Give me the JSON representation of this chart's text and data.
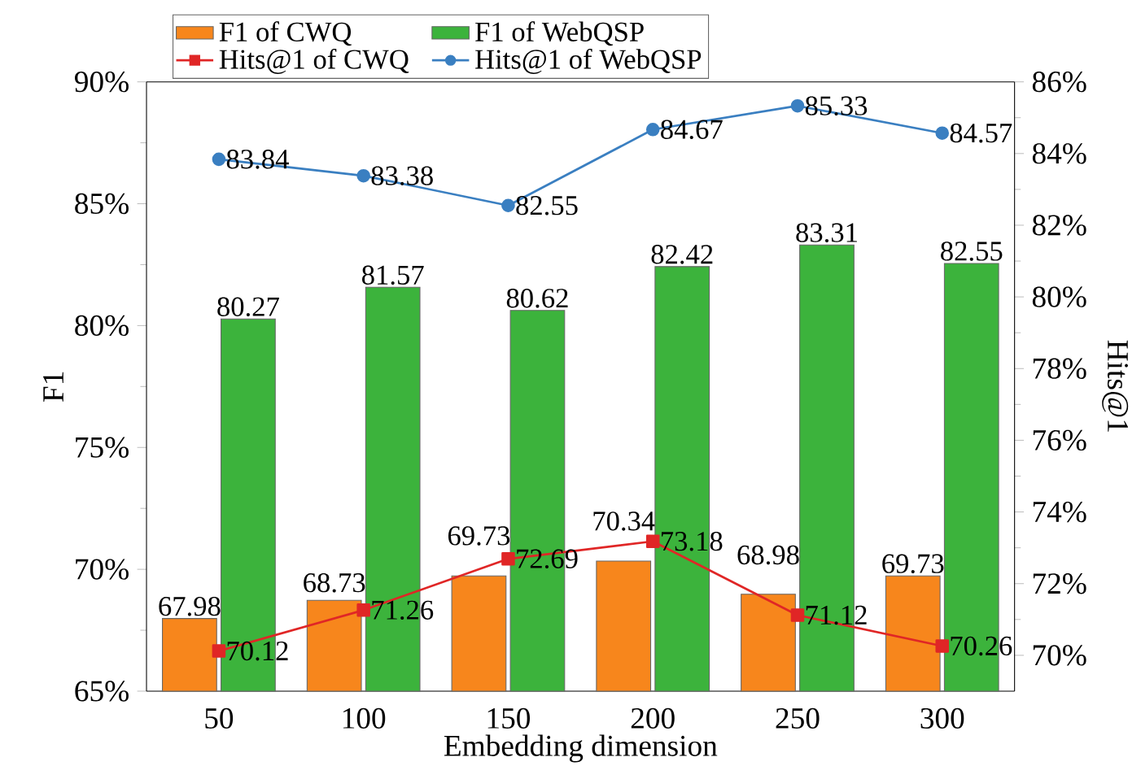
{
  "chart_data": {
    "type": "bar",
    "xlabel": "Embedding dimension",
    "ylabel": "F1",
    "y2label": "Hits@1",
    "categories": [
      "50",
      "100",
      "150",
      "200",
      "250",
      "300"
    ],
    "ylim": [
      65,
      90
    ],
    "yticks": [
      {
        "value": 65,
        "label": "65%"
      },
      {
        "value": 70,
        "label": "70%"
      },
      {
        "value": 75,
        "label": "75%"
      },
      {
        "value": 80,
        "label": "80%"
      },
      {
        "value": 85,
        "label": "85%"
      },
      {
        "value": 90,
        "label": "90%"
      }
    ],
    "y2lim": [
      69,
      86
    ],
    "y2ticks": [
      {
        "value": 70,
        "label": "70%"
      },
      {
        "value": 72,
        "label": "72%"
      },
      {
        "value": 74,
        "label": "74%"
      },
      {
        "value": 76,
        "label": "76%"
      },
      {
        "value": 78,
        "label": "78%"
      },
      {
        "value": 80,
        "label": "80%"
      },
      {
        "value": 82,
        "label": "82%"
      },
      {
        "value": 84,
        "label": "84%"
      },
      {
        "value": 86,
        "label": "86%"
      }
    ],
    "legend": "top",
    "data_labels": true,
    "series": [
      {
        "name": "F1 of CWQ",
        "color": "#f7861c",
        "values": [
          67.98,
          68.73,
          69.73,
          70.34,
          68.98,
          69.73
        ]
      },
      {
        "name": "F1 of WebQSP",
        "color": "#3cb33c",
        "values": [
          80.27,
          81.57,
          80.62,
          82.42,
          83.31,
          82.55
        ]
      },
      {
        "name": "Hits@1 of CWQ",
        "type": "line",
        "axis": "y2",
        "marker": "square",
        "color": "#e02626",
        "values": [
          70.12,
          71.26,
          72.69,
          73.18,
          71.12,
          70.26
        ]
      },
      {
        "name": "Hits@1 of WebQSP",
        "type": "line",
        "axis": "y2",
        "marker": "circle",
        "color": "#3a7fc1",
        "values": [
          83.84,
          83.38,
          82.55,
          84.67,
          85.33,
          84.57
        ]
      }
    ]
  }
}
